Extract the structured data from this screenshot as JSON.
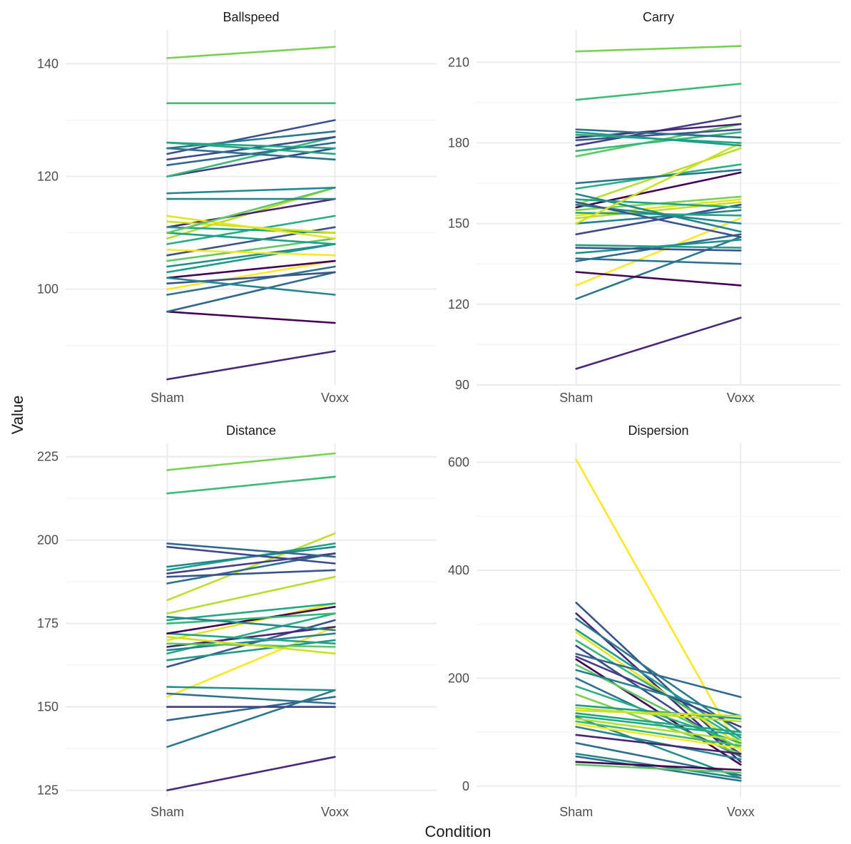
{
  "xlabel": "Condition",
  "ylabel": "Value",
  "chart_data": [
    {
      "type": "line",
      "title": "Ballspeed",
      "categories": [
        "Sham",
        "Voxx"
      ],
      "yticks": [
        100,
        120,
        140
      ],
      "ylim": [
        83,
        146
      ],
      "series": [
        {
          "values": [
            84,
            89
          ],
          "color": "#472878"
        },
        {
          "values": [
            96,
            94
          ],
          "color": "#440154"
        },
        {
          "values": [
            96,
            103
          ],
          "color": "#31688e"
        },
        {
          "values": [
            99,
            104
          ],
          "color": "#2c728e"
        },
        {
          "values": [
            100,
            105
          ],
          "color": "#fde725"
        },
        {
          "values": [
            101,
            103
          ],
          "color": "#3b528b"
        },
        {
          "values": [
            102,
            105
          ],
          "color": "#440154"
        },
        {
          "values": [
            102,
            99
          ],
          "color": "#25858e"
        },
        {
          "values": [
            103,
            108
          ],
          "color": "#1e9b8a"
        },
        {
          "values": [
            104,
            108
          ],
          "color": "#21908d"
        },
        {
          "values": [
            105,
            109
          ],
          "color": "#5ec962"
        },
        {
          "values": [
            106,
            111
          ],
          "color": "#3b528b"
        },
        {
          "values": [
            107,
            106
          ],
          "color": "#fde725"
        },
        {
          "values": [
            108,
            113
          ],
          "color": "#28ae80"
        },
        {
          "values": [
            109,
            118
          ],
          "color": "#b5de2b"
        },
        {
          "values": [
            110,
            108
          ],
          "color": "#1f9e89"
        },
        {
          "values": [
            111,
            116
          ],
          "color": "#482475"
        },
        {
          "values": [
            111,
            110
          ],
          "color": "#20a486"
        },
        {
          "values": [
            112,
            110
          ],
          "color": "#cde11d"
        },
        {
          "values": [
            113,
            109
          ],
          "color": "#e5e419"
        },
        {
          "values": [
            110,
            118
          ],
          "color": "#5ec962"
        },
        {
          "values": [
            116,
            116
          ],
          "color": "#26828e"
        },
        {
          "values": [
            117,
            118
          ],
          "color": "#23888e"
        },
        {
          "values": [
            120,
            125
          ],
          "color": "#433e85"
        },
        {
          "values": [
            120,
            127
          ],
          "color": "#35b779"
        },
        {
          "values": [
            122,
            126
          ],
          "color": "#31688e"
        },
        {
          "values": [
            123,
            127
          ],
          "color": "#3e4989"
        },
        {
          "values": [
            124,
            130
          ],
          "color": "#3b528b"
        },
        {
          "values": [
            125,
            123
          ],
          "color": "#2d708e"
        },
        {
          "values": [
            125,
            128
          ],
          "color": "#2a788e"
        },
        {
          "values": [
            126,
            125
          ],
          "color": "#20a486"
        },
        {
          "values": [
            126,
            124
          ],
          "color": "#22a884"
        },
        {
          "values": [
            133,
            133
          ],
          "color": "#3cbb75"
        },
        {
          "values": [
            141,
            143
          ],
          "color": "#7ad151"
        }
      ]
    },
    {
      "type": "line",
      "title": "Carry",
      "categories": [
        "Sham",
        "Voxx"
      ],
      "yticks": [
        90,
        120,
        150,
        180,
        210
      ],
      "ylim": [
        90,
        222
      ],
      "series": [
        {
          "values": [
            96,
            115
          ],
          "color": "#472878"
        },
        {
          "values": [
            122,
            145
          ],
          "color": "#2a788e"
        },
        {
          "values": [
            127,
            152
          ],
          "color": "#fde725"
        },
        {
          "values": [
            132,
            127
          ],
          "color": "#440154"
        },
        {
          "values": [
            136,
            146
          ],
          "color": "#31688e"
        },
        {
          "values": [
            137,
            135
          ],
          "color": "#2c728e"
        },
        {
          "values": [
            139,
            144
          ],
          "color": "#21908d"
        },
        {
          "values": [
            141,
            140
          ],
          "color": "#3b528b"
        },
        {
          "values": [
            142,
            141
          ],
          "color": "#1f9e89"
        },
        {
          "values": [
            146,
            157
          ],
          "color": "#3e4989"
        },
        {
          "values": [
            150,
            155
          ],
          "color": "#26828e"
        },
        {
          "values": [
            152,
            158
          ],
          "color": "#bddf26"
        },
        {
          "values": [
            153,
            159
          ],
          "color": "#e5e419"
        },
        {
          "values": [
            154,
            153
          ],
          "color": "#20a486"
        },
        {
          "values": [
            155,
            160
          ],
          "color": "#7ad151"
        },
        {
          "values": [
            156,
            169
          ],
          "color": "#440154"
        },
        {
          "values": [
            157,
            178
          ],
          "color": "#b5de2b"
        },
        {
          "values": [
            157,
            150
          ],
          "color": "#25858e"
        },
        {
          "values": [
            158,
            145
          ],
          "color": "#3b528b"
        },
        {
          "values": [
            159,
            156
          ],
          "color": "#20a486"
        },
        {
          "values": [
            161,
            147
          ],
          "color": "#23888e"
        },
        {
          "values": [
            163,
            172
          ],
          "color": "#28ae80"
        },
        {
          "values": [
            165,
            170
          ],
          "color": "#2c728e"
        },
        {
          "values": [
            150,
            180
          ],
          "color": "#cde11d"
        },
        {
          "values": [
            175,
            187
          ],
          "color": "#5ec962"
        },
        {
          "values": [
            177,
            184
          ],
          "color": "#35b779"
        },
        {
          "values": [
            179,
            190
          ],
          "color": "#433e85"
        },
        {
          "values": [
            181,
            185
          ],
          "color": "#3b528b"
        },
        {
          "values": [
            182,
            187
          ],
          "color": "#482475"
        },
        {
          "values": [
            183,
            180
          ],
          "color": "#22a884"
        },
        {
          "values": [
            184,
            179
          ],
          "color": "#1e9b8a"
        },
        {
          "values": [
            185,
            182
          ],
          "color": "#2d708e"
        },
        {
          "values": [
            196,
            202
          ],
          "color": "#3cbb75"
        },
        {
          "values": [
            214,
            216
          ],
          "color": "#7ad151"
        }
      ]
    },
    {
      "type": "line",
      "title": "Distance",
      "categories": [
        "Sham",
        "Voxx"
      ],
      "yticks": [
        125,
        150,
        175,
        200,
        225
      ],
      "ylim": [
        123,
        229
      ],
      "series": [
        {
          "values": [
            125,
            135
          ],
          "color": "#472878"
        },
        {
          "values": [
            138,
            155
          ],
          "color": "#2a788e"
        },
        {
          "values": [
            146,
            153
          ],
          "color": "#31688e"
        },
        {
          "values": [
            150,
            150
          ],
          "color": "#440154"
        },
        {
          "values": [
            150,
            150
          ],
          "color": "#3e4989"
        },
        {
          "values": [
            153,
            174
          ],
          "color": "#fde725"
        },
        {
          "values": [
            154,
            151
          ],
          "color": "#2c728e"
        },
        {
          "values": [
            156,
            155
          ],
          "color": "#21908d"
        },
        {
          "values": [
            162,
            176
          ],
          "color": "#3b528b"
        },
        {
          "values": [
            164,
            170
          ],
          "color": "#1e9b8a"
        },
        {
          "values": [
            166,
            178
          ],
          "color": "#28ae80"
        },
        {
          "values": [
            167,
            172
          ],
          "color": "#26828e"
        },
        {
          "values": [
            168,
            174
          ],
          "color": "#482475"
        },
        {
          "values": [
            169,
            168
          ],
          "color": "#5ec962"
        },
        {
          "values": [
            170,
            181
          ],
          "color": "#e5e419"
        },
        {
          "values": [
            171,
            166
          ],
          "color": "#cde11d"
        },
        {
          "values": [
            172,
            169
          ],
          "color": "#20a486"
        },
        {
          "values": [
            172,
            180
          ],
          "color": "#440154"
        },
        {
          "values": [
            175,
            178
          ],
          "color": "#35b779"
        },
        {
          "values": [
            176,
            181
          ],
          "color": "#22a884"
        },
        {
          "values": [
            177,
            173
          ],
          "color": "#25858e"
        },
        {
          "values": [
            178,
            189
          ],
          "color": "#b5de2b"
        },
        {
          "values": [
            182,
            202
          ],
          "color": "#bddf26"
        },
        {
          "values": [
            187,
            196
          ],
          "color": "#2d708e"
        },
        {
          "values": [
            189,
            191
          ],
          "color": "#3b528b"
        },
        {
          "values": [
            190,
            196
          ],
          "color": "#433e85"
        },
        {
          "values": [
            191,
            199
          ],
          "color": "#1f9e89"
        },
        {
          "values": [
            192,
            198
          ],
          "color": "#23888e"
        },
        {
          "values": [
            198,
            193
          ],
          "color": "#3e4989"
        },
        {
          "values": [
            199,
            195
          ],
          "color": "#31688e"
        },
        {
          "values": [
            214,
            219
          ],
          "color": "#3cbb75"
        },
        {
          "values": [
            221,
            226
          ],
          "color": "#7ad151"
        }
      ]
    },
    {
      "type": "line",
      "title": "Dispersion",
      "categories": [
        "Sham",
        "Voxx"
      ],
      "yticks": [
        0,
        200,
        400,
        600
      ],
      "ylim": [
        -20,
        635
      ],
      "series": [
        {
          "values": [
            605,
            65
          ],
          "color": "#fde725"
        },
        {
          "values": [
            340,
            55
          ],
          "color": "#3b528b"
        },
        {
          "values": [
            320,
            45
          ],
          "color": "#472878"
        },
        {
          "values": [
            310,
            100
          ],
          "color": "#2a788e"
        },
        {
          "values": [
            290,
            90
          ],
          "color": "#1e9b8a"
        },
        {
          "values": [
            285,
            75
          ],
          "color": "#e5e419"
        },
        {
          "values": [
            270,
            85
          ],
          "color": "#35b779"
        },
        {
          "values": [
            260,
            60
          ],
          "color": "#3e4989"
        },
        {
          "values": [
            245,
            165
          ],
          "color": "#31688e"
        },
        {
          "values": [
            240,
            110
          ],
          "color": "#433e85"
        },
        {
          "values": [
            235,
            40
          ],
          "color": "#440154"
        },
        {
          "values": [
            225,
            70
          ],
          "color": "#5ec962"
        },
        {
          "values": [
            215,
            130
          ],
          "color": "#26828e"
        },
        {
          "values": [
            200,
            55
          ],
          "color": "#2c728e"
        },
        {
          "values": [
            185,
            80
          ],
          "color": "#28ae80"
        },
        {
          "values": [
            170,
            60
          ],
          "color": "#7ad151"
        },
        {
          "values": [
            150,
            125
          ],
          "color": "#1f9e89"
        },
        {
          "values": [
            145,
            120
          ],
          "color": "#bddf26"
        },
        {
          "values": [
            140,
            130
          ],
          "color": "#cde11d"
        },
        {
          "values": [
            135,
            100
          ],
          "color": "#20a486"
        },
        {
          "values": [
            130,
            95
          ],
          "color": "#22a884"
        },
        {
          "values": [
            128,
            15
          ],
          "color": "#21908d"
        },
        {
          "values": [
            125,
            85
          ],
          "color": "#b5de2b"
        },
        {
          "values": [
            120,
            75
          ],
          "color": "#3cbb75"
        },
        {
          "values": [
            115,
            70
          ],
          "color": "#fde725"
        },
        {
          "values": [
            110,
            50
          ],
          "color": "#25858e"
        },
        {
          "values": [
            95,
            60
          ],
          "color": "#482475"
        },
        {
          "values": [
            80,
            20
          ],
          "color": "#2d708e"
        },
        {
          "values": [
            60,
            15
          ],
          "color": "#23888e"
        },
        {
          "values": [
            55,
            10
          ],
          "color": "#2c728e"
        },
        {
          "values": [
            45,
            30
          ],
          "color": "#440154"
        },
        {
          "values": [
            40,
            25
          ],
          "color": "#5ec962"
        }
      ]
    }
  ]
}
